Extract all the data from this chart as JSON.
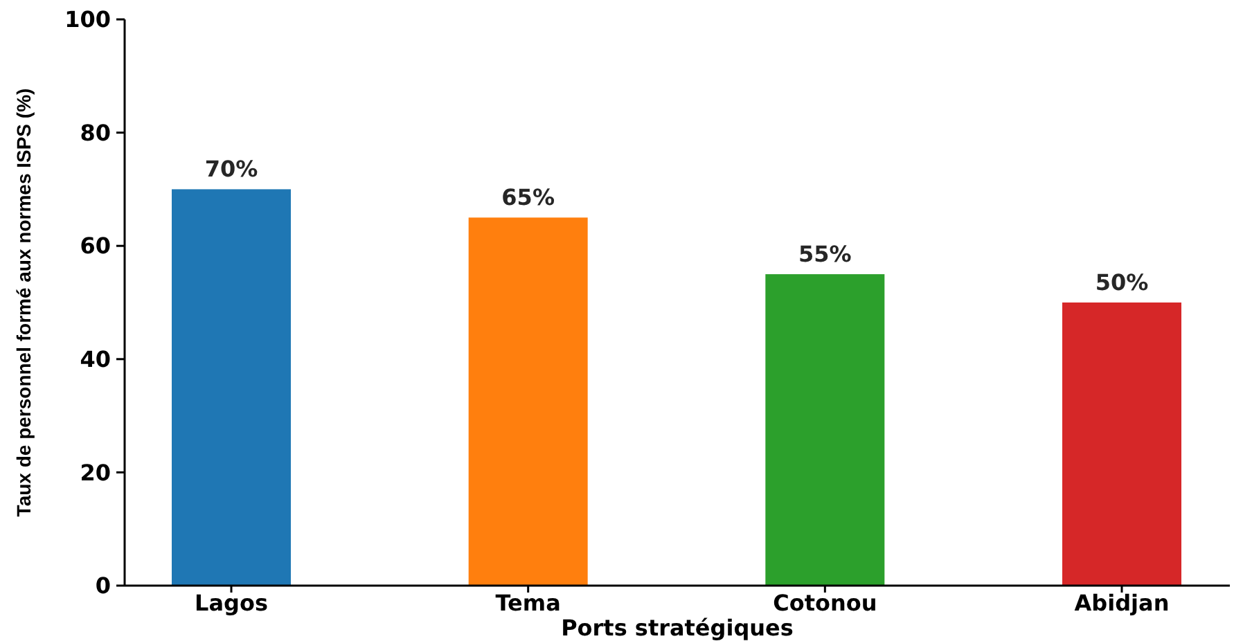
{
  "chart_data": {
    "type": "bar",
    "xlabel": "Ports stratégiques",
    "ylabel": "Taux de personnel formé aux normes ISPS (%)",
    "categories": [
      "Lagos",
      "Tema",
      "Cotonou",
      "Abidjan"
    ],
    "values": [
      70,
      65,
      55,
      50
    ],
    "colors": [
      "#1f77b4",
      "#ff7f0e",
      "#2ca02c",
      "#d62728"
    ],
    "value_labels": [
      "70%",
      "65%",
      "55%",
      "50%"
    ],
    "ylim": [
      0,
      100
    ],
    "yticks": [
      0,
      20,
      40,
      60,
      80,
      100
    ],
    "grid": false
  }
}
